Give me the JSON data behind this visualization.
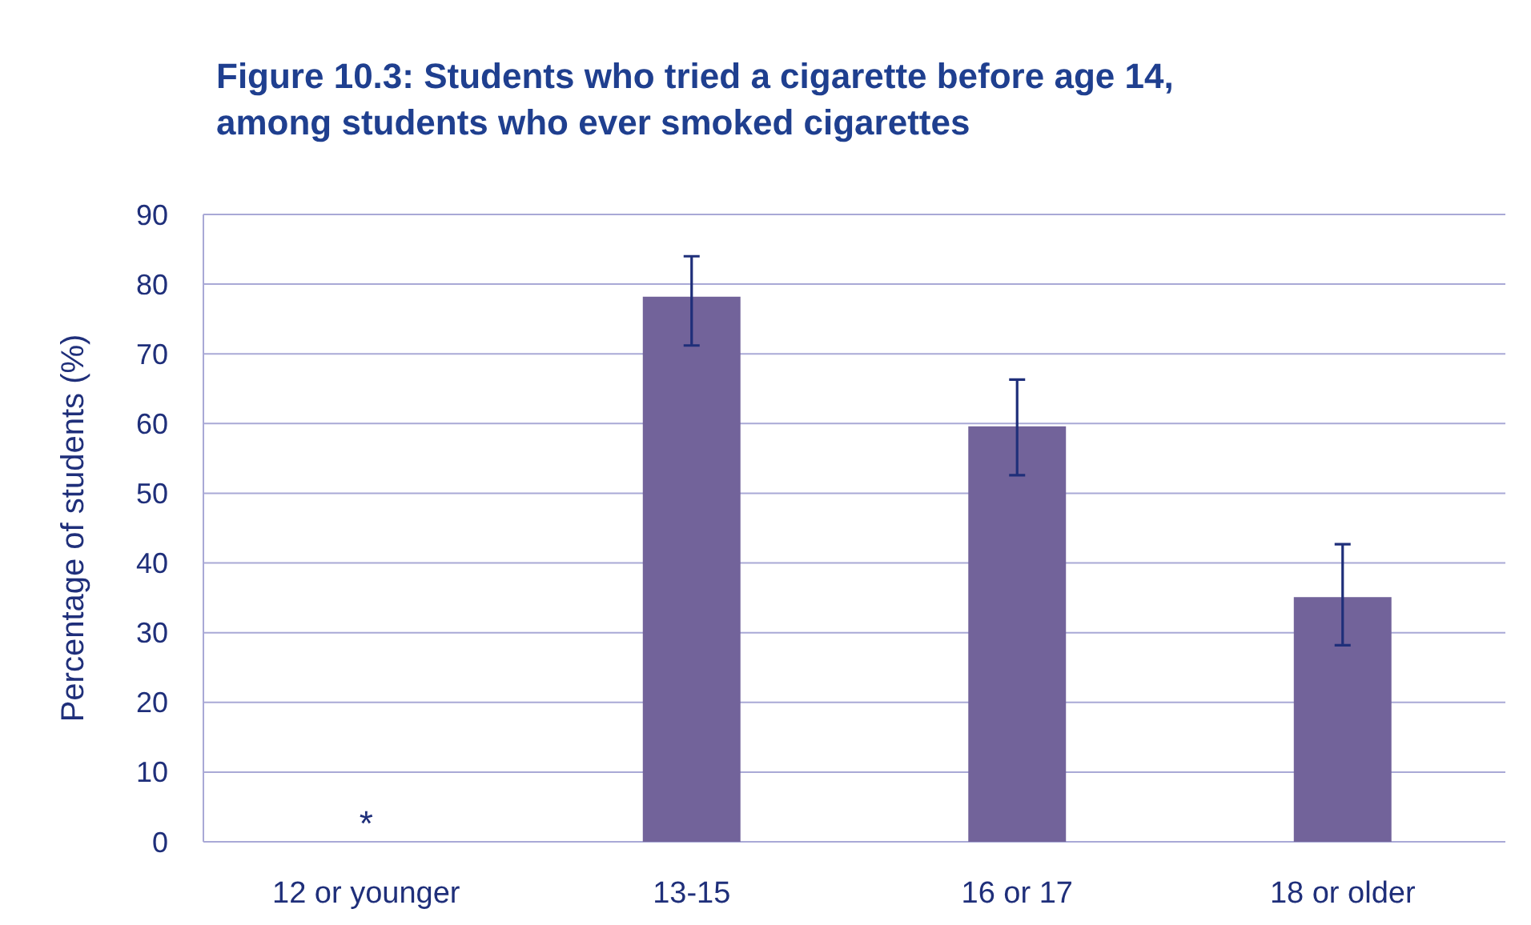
{
  "chart_data": {
    "type": "bar",
    "title": "Figure 10.3: Students who tried a cigarette before age 14,\namong students who ever smoked cigarettes",
    "ylabel": "Percentage of students (%)",
    "categories": [
      "12 or younger",
      "13-15",
      "16 or 17",
      "18 or older"
    ],
    "values": [
      null,
      78.2,
      59.6,
      35.1
    ],
    "errors": [
      null,
      [
        71.2,
        84.0
      ],
      [
        52.6,
        66.3
      ],
      [
        28.2,
        42.7
      ]
    ],
    "color": "#72639a",
    "ylim": [
      0,
      90
    ],
    "yticks": [
      0,
      10,
      20,
      30,
      40,
      50,
      60,
      70,
      80,
      90
    ],
    "grid": "y",
    "annotations": [
      "*"
    ]
  }
}
